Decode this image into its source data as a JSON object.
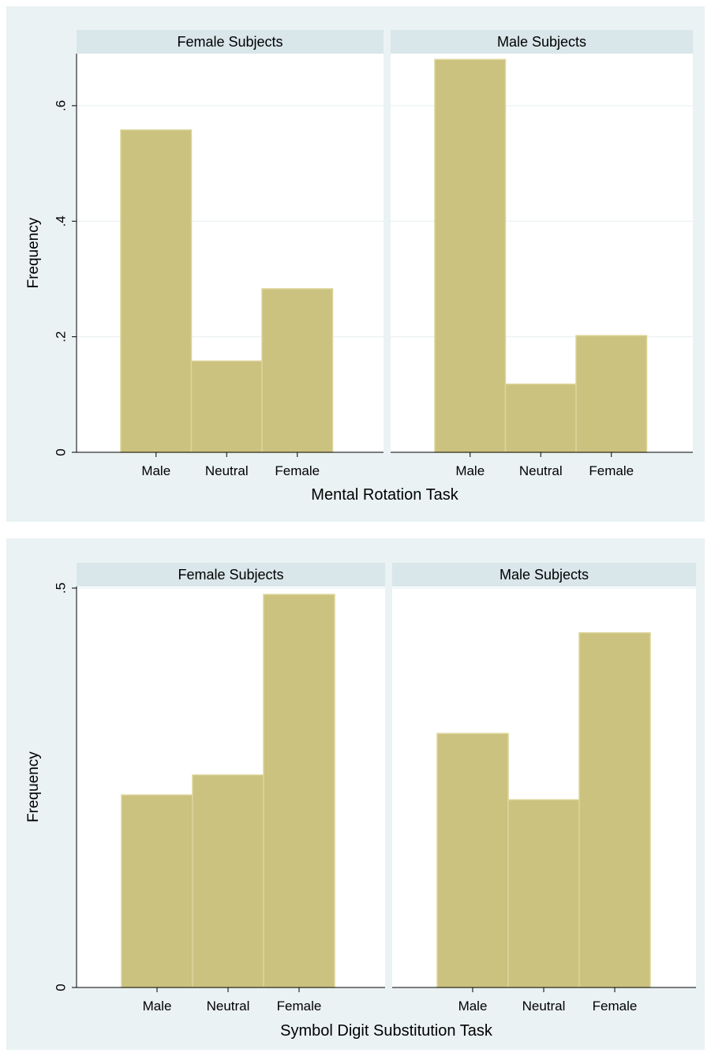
{
  "colors": {
    "outer_background": "#eaf2f3",
    "plot_background": "#ffffff",
    "strip_background": "#d9e6ea",
    "bar_fill": "#cbc27f",
    "bar_edge": "#dcd59a",
    "gridline": "#eaf2f3",
    "axis": "#000000"
  },
  "chart_data": [
    {
      "type": "bar",
      "xlabel": "Mental Rotation Task",
      "ylabel": "Frequency",
      "categories": [
        "Male",
        "Neutral",
        "Female"
      ],
      "ylim": [
        0,
        0.69
      ],
      "yticks": [
        0,
        0.2,
        0.4,
        0.6
      ],
      "ytick_labels": [
        "0",
        ".2",
        ".4",
        ".6"
      ],
      "grid": true,
      "panels": [
        {
          "name": "Female Subjects",
          "values": [
            0.558,
            0.158,
            0.283
          ]
        },
        {
          "name": "Male Subjects",
          "values": [
            0.68,
            0.118,
            0.202
          ]
        }
      ]
    },
    {
      "type": "bar",
      "xlabel": "Symbol Digit Substitution Task",
      "ylabel": "Frequency",
      "categories": [
        "Male",
        "Neutral",
        "Female"
      ],
      "ylim": [
        0,
        0.502
      ],
      "yticks": [
        0,
        0.5
      ],
      "ytick_labels": [
        "0",
        ".5"
      ],
      "grid": true,
      "panels": [
        {
          "name": "Female Subjects",
          "values": [
            0.241,
            0.266,
            0.492
          ]
        },
        {
          "name": "Male Subjects",
          "values": [
            0.318,
            0.235,
            0.444
          ]
        }
      ]
    }
  ]
}
